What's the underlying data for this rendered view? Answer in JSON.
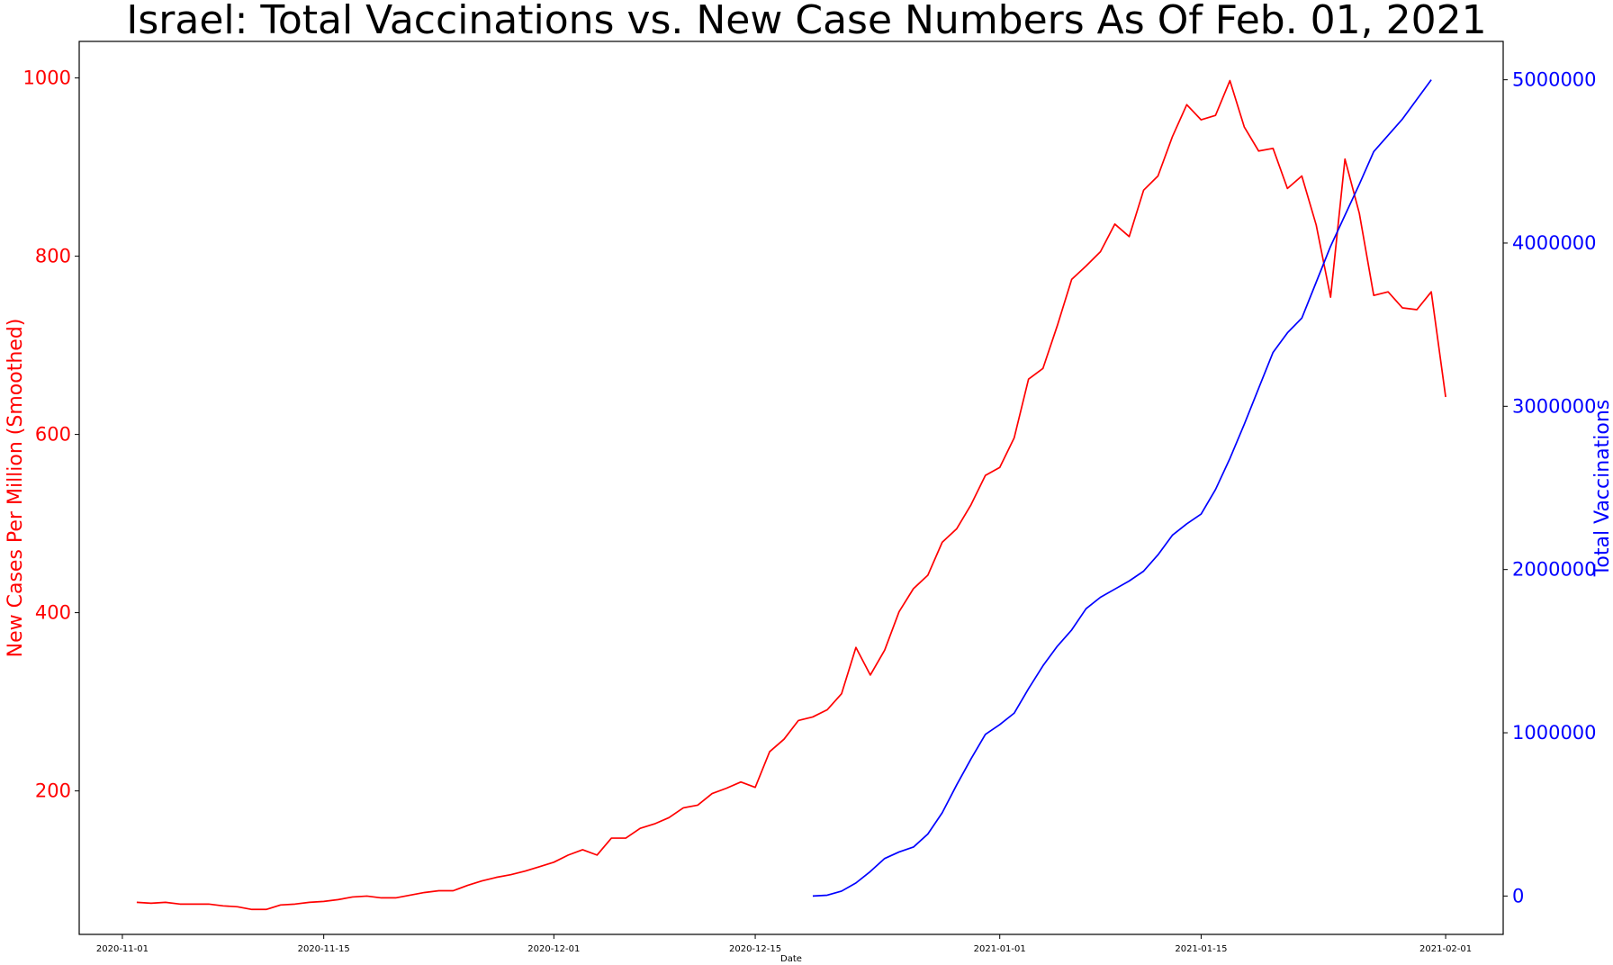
{
  "chart_data": {
    "type": "line",
    "title": "Israel: Total Vaccinations vs. New Case Numbers As Of Feb. 01, 2021",
    "xlabel": "Date",
    "ylabel_left": "New Cases Per Million (Smoothed)",
    "ylabel_right": "Total Vaccinations",
    "xlim": [
      "2020-10-29",
      "2021-02-05"
    ],
    "ylim_left": [
      39,
      1041
    ],
    "ylim_right": [
      -235000,
      5235000
    ],
    "x_ticks": [
      "2020-11-01",
      "2020-11-15",
      "2020-12-01",
      "2020-12-15",
      "2021-01-01",
      "2021-01-15",
      "2021-02-01"
    ],
    "y_ticks_left": [
      200,
      400,
      600,
      800,
      1000
    ],
    "y_ticks_right": [
      0,
      1000000,
      2000000,
      3000000,
      4000000,
      5000000
    ],
    "grid": false,
    "colors": {
      "cases": "#ff0000",
      "vaccinations": "#0000ff",
      "axes": "#000000"
    },
    "series": [
      {
        "axis": "left",
        "color": "#ff0000",
        "start_date": "2020-11-02",
        "values": [
          75,
          74,
          75,
          73,
          73,
          73,
          71,
          70,
          67,
          67,
          72,
          73,
          75,
          76,
          78,
          81,
          82,
          80,
          80,
          83,
          86,
          88,
          88,
          94,
          99,
          103,
          106,
          110,
          115,
          120,
          128,
          134,
          128,
          147,
          147,
          158,
          163,
          170,
          181,
          184,
          197,
          203,
          210,
          204,
          244,
          258,
          279,
          283,
          291,
          309,
          361,
          330,
          358,
          401,
          427,
          442,
          479,
          494,
          521,
          554,
          563,
          596,
          662,
          674,
          722,
          774,
          789,
          805,
          836,
          822,
          874,
          890,
          934,
          970,
          953,
          958,
          997,
          945,
          918,
          921,
          876,
          890,
          835,
          754,
          909,
          848,
          756,
          760,
          742,
          740,
          760,
          642
        ]
      },
      {
        "axis": "right",
        "color": "#0000ff",
        "start_date": "2020-12-19",
        "values": [
          0,
          5000,
          30000,
          80000,
          150000,
          230000,
          270000,
          300000,
          380000,
          510000,
          680000,
          840000,
          990000,
          1050000,
          1120000,
          1270000,
          1410000,
          1530000,
          1630000,
          1760000,
          1830000,
          1880000,
          1930000,
          1990000,
          2090000,
          2210000,
          2280000,
          2340000,
          2490000,
          2680000,
          2890000,
          3110000,
          3330000,
          3450000,
          3540000,
          3760000,
          3980000,
          4170000,
          4360000,
          4560000,
          4660000,
          4760000,
          4880000,
          5000000
        ]
      }
    ]
  }
}
